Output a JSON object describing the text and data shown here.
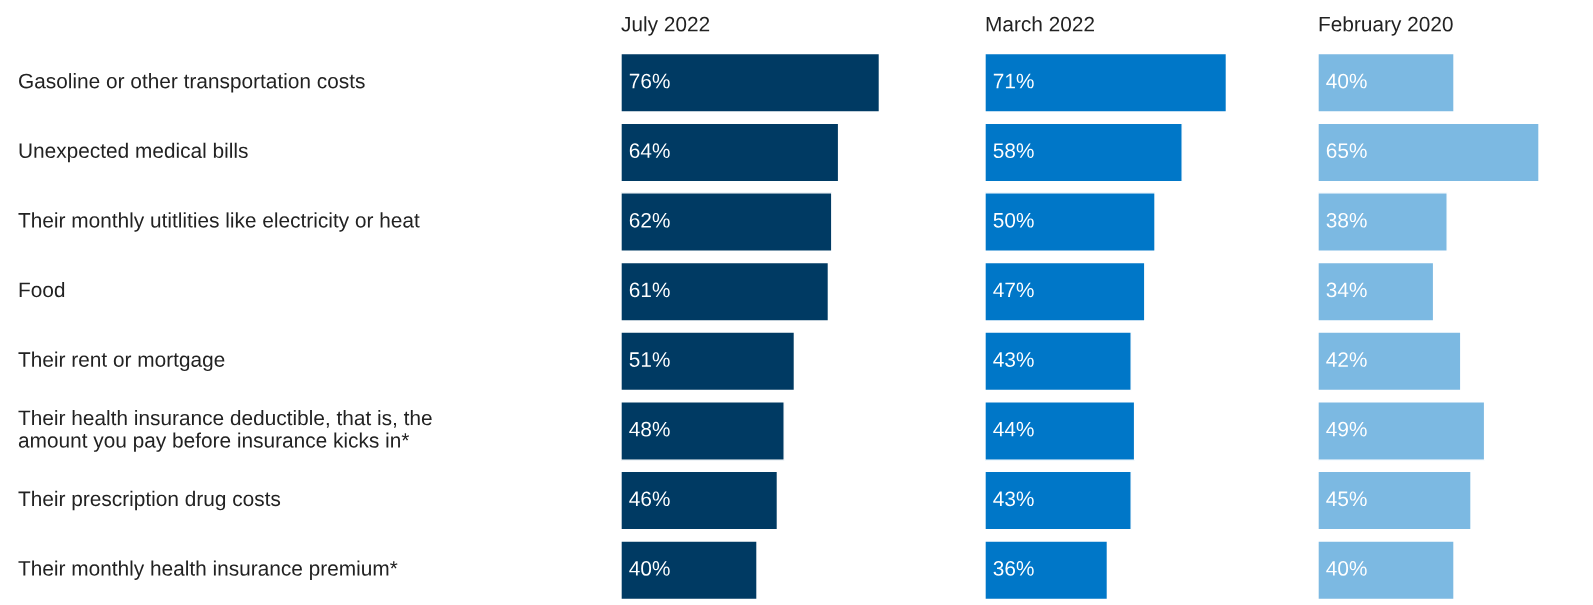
{
  "chart_data": [
    {
      "type": "bar",
      "orientation": "horizontal",
      "title": "July 2022",
      "categories": [
        "Gasoline or other transportation costs",
        "Unexpected medical bills",
        "Their monthly utitlities like electricity or heat",
        "Food",
        "Their rent or mortgage",
        "Their health insurance deductible, that is, the\namount you pay before insurance kicks in*",
        "Their prescription drug costs",
        "Their monthly health insurance premium*"
      ],
      "values": [
        76,
        64,
        62,
        61,
        51,
        48,
        46,
        40
      ],
      "value_labels": [
        "76%",
        "64%",
        "62%",
        "61%",
        "51%",
        "48%",
        "46%",
        "40%"
      ],
      "color": "#003a63",
      "tick_labels": "y"
    },
    {
      "type": "bar",
      "orientation": "horizontal",
      "title": "March 2022",
      "categories": [
        null,
        null,
        null,
        null,
        null,
        null,
        null,
        null
      ],
      "values": [
        71,
        58,
        50,
        47,
        43,
        44,
        43,
        36
      ],
      "value_labels": [
        "71%",
        "58%",
        "50%",
        "47%",
        "43%",
        "44%",
        "43%",
        "36%"
      ],
      "color": "#0077c8",
      "tick_labels": false
    },
    {
      "type": "bar",
      "orientation": "horizontal",
      "title": "February 2020",
      "categories": [
        null,
        null,
        null,
        null,
        null,
        null,
        null,
        null
      ],
      "values": [
        40,
        65,
        38,
        34,
        42,
        49,
        45,
        40
      ],
      "value_labels": [
        "40%",
        "65%",
        "38%",
        "34%",
        "42%",
        "49%",
        "45%",
        "40%"
      ],
      "color": "#7cb9e2",
      "tick_labels": false
    }
  ]
}
